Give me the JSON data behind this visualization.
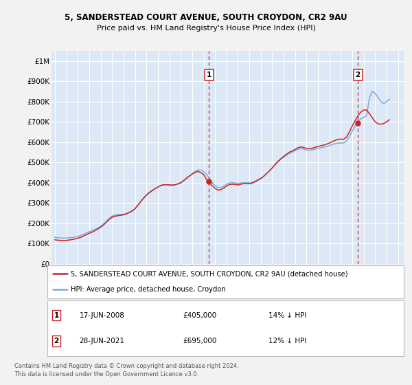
{
  "title_line1": "5, SANDERSTEAD COURT AVENUE, SOUTH CROYDON, CR2 9AU",
  "title_line2": "Price paid vs. HM Land Registry's House Price Index (HPI)",
  "ylabel_ticks": [
    "£0",
    "£100K",
    "£200K",
    "£300K",
    "£400K",
    "£500K",
    "£600K",
    "£700K",
    "£800K",
    "£900K",
    "£1M"
  ],
  "ytick_values": [
    0,
    100000,
    200000,
    300000,
    400000,
    500000,
    600000,
    700000,
    800000,
    900000,
    1000000
  ],
  "xlim_start": 1994.7,
  "xlim_end": 2025.5,
  "ylim_min": 0,
  "ylim_max": 1050000,
  "fig_bg_color": "#f2f2f2",
  "plot_bg_color": "#dce8f5",
  "grid_color": "#ffffff",
  "hpi_line_color": "#7aabdb",
  "price_line_color": "#cc2222",
  "dashed_line_color": "#cc2222",
  "marker1_year": 2008.46,
  "marker1_value": 405000,
  "marker2_year": 2021.49,
  "marker2_value": 695000,
  "legend_line1": "5, SANDERSTEAD COURT AVENUE, SOUTH CROYDON, CR2 9AU (detached house)",
  "legend_line2": "HPI: Average price, detached house, Croydon",
  "annotation1_date": "17-JUN-2008",
  "annotation1_price": "£405,000",
  "annotation1_hpi": "14% ↓ HPI",
  "annotation2_date": "28-JUN-2021",
  "annotation2_price": "£695,000",
  "annotation2_hpi": "12% ↓ HPI",
  "footer": "Contains HM Land Registry data © Crown copyright and database right 2024.\nThis data is licensed under the Open Government Licence v3.0.",
  "hpi_data_x": [
    1995.0,
    1995.25,
    1995.5,
    1995.75,
    1996.0,
    1996.25,
    1996.5,
    1996.75,
    1997.0,
    1997.25,
    1997.5,
    1997.75,
    1998.0,
    1998.25,
    1998.5,
    1998.75,
    1999.0,
    1999.25,
    1999.5,
    1999.75,
    2000.0,
    2000.25,
    2000.5,
    2000.75,
    2001.0,
    2001.25,
    2001.5,
    2001.75,
    2002.0,
    2002.25,
    2002.5,
    2002.75,
    2003.0,
    2003.25,
    2003.5,
    2003.75,
    2004.0,
    2004.25,
    2004.5,
    2004.75,
    2005.0,
    2005.25,
    2005.5,
    2005.75,
    2006.0,
    2006.25,
    2006.5,
    2006.75,
    2007.0,
    2007.25,
    2007.5,
    2007.75,
    2008.0,
    2008.25,
    2008.5,
    2008.75,
    2009.0,
    2009.25,
    2009.5,
    2009.75,
    2010.0,
    2010.25,
    2010.5,
    2010.75,
    2011.0,
    2011.25,
    2011.5,
    2011.75,
    2012.0,
    2012.25,
    2012.5,
    2012.75,
    2013.0,
    2013.25,
    2013.5,
    2013.75,
    2014.0,
    2014.25,
    2014.5,
    2014.75,
    2015.0,
    2015.25,
    2015.5,
    2015.75,
    2016.0,
    2016.25,
    2016.5,
    2016.75,
    2017.0,
    2017.25,
    2017.5,
    2017.75,
    2018.0,
    2018.25,
    2018.5,
    2018.75,
    2019.0,
    2019.25,
    2019.5,
    2019.75,
    2020.0,
    2020.25,
    2020.5,
    2020.75,
    2021.0,
    2021.25,
    2021.5,
    2021.75,
    2022.0,
    2022.25,
    2022.5,
    2022.75,
    2023.0,
    2023.25,
    2023.5,
    2023.75,
    2024.0,
    2024.25
  ],
  "hpi_data_y": [
    130000,
    128000,
    127000,
    126000,
    127000,
    128000,
    129000,
    131000,
    135000,
    139000,
    145000,
    152000,
    158000,
    163000,
    169000,
    177000,
    185000,
    196000,
    210000,
    224000,
    235000,
    240000,
    242000,
    243000,
    244000,
    248000,
    254000,
    262000,
    272000,
    290000,
    308000,
    325000,
    340000,
    352000,
    362000,
    370000,
    378000,
    385000,
    388000,
    388000,
    387000,
    386000,
    388000,
    392000,
    398000,
    408000,
    420000,
    432000,
    444000,
    455000,
    462000,
    462000,
    455000,
    440000,
    420000,
    400000,
    385000,
    375000,
    375000,
    382000,
    392000,
    398000,
    400000,
    398000,
    395000,
    398000,
    400000,
    400000,
    398000,
    402000,
    408000,
    415000,
    422000,
    432000,
    445000,
    458000,
    472000,
    488000,
    502000,
    515000,
    525000,
    535000,
    545000,
    550000,
    558000,
    565000,
    568000,
    565000,
    560000,
    560000,
    562000,
    565000,
    568000,
    572000,
    575000,
    578000,
    582000,
    588000,
    592000,
    595000,
    595000,
    595000,
    605000,
    628000,
    655000,
    678000,
    700000,
    715000,
    722000,
    730000,
    818000,
    850000,
    840000,
    820000,
    800000,
    790000,
    800000,
    810000
  ],
  "price_data_x": [
    1995.0,
    1995.25,
    1995.5,
    1995.75,
    1996.0,
    1996.25,
    1996.5,
    1996.75,
    1997.0,
    1997.25,
    1997.5,
    1997.75,
    1998.0,
    1998.25,
    1998.5,
    1998.75,
    1999.0,
    1999.25,
    1999.5,
    1999.75,
    2000.0,
    2000.25,
    2000.5,
    2000.75,
    2001.0,
    2001.25,
    2001.5,
    2001.75,
    2002.0,
    2002.25,
    2002.5,
    2002.75,
    2003.0,
    2003.25,
    2003.5,
    2003.75,
    2004.0,
    2004.25,
    2004.5,
    2004.75,
    2005.0,
    2005.25,
    2005.5,
    2005.75,
    2006.0,
    2006.25,
    2006.5,
    2006.75,
    2007.0,
    2007.25,
    2007.5,
    2007.75,
    2008.0,
    2008.25,
    2008.5,
    2008.75,
    2009.0,
    2009.25,
    2009.5,
    2009.75,
    2010.0,
    2010.25,
    2010.5,
    2010.75,
    2011.0,
    2011.25,
    2011.5,
    2011.75,
    2012.0,
    2012.25,
    2012.5,
    2012.75,
    2013.0,
    2013.25,
    2013.5,
    2013.75,
    2014.0,
    2014.25,
    2014.5,
    2014.75,
    2015.0,
    2015.25,
    2015.5,
    2015.75,
    2016.0,
    2016.25,
    2016.5,
    2016.75,
    2017.0,
    2017.25,
    2017.5,
    2017.75,
    2018.0,
    2018.25,
    2018.5,
    2018.75,
    2019.0,
    2019.25,
    2019.5,
    2019.75,
    2020.0,
    2020.25,
    2020.5,
    2020.75,
    2021.0,
    2021.25,
    2021.5,
    2021.75,
    2022.0,
    2022.25,
    2022.5,
    2022.75,
    2023.0,
    2023.25,
    2023.5,
    2023.75,
    2024.0,
    2024.25
  ],
  "price_data_y": [
    118000,
    116000,
    115000,
    114000,
    115000,
    117000,
    119000,
    122000,
    126000,
    130000,
    137000,
    144000,
    150000,
    156000,
    163000,
    171000,
    180000,
    191000,
    205000,
    219000,
    229000,
    234000,
    237000,
    239000,
    241000,
    246000,
    252000,
    260000,
    270000,
    288000,
    306000,
    323000,
    338000,
    350000,
    360000,
    370000,
    378000,
    386000,
    390000,
    390000,
    389000,
    388000,
    390000,
    394000,
    400000,
    410000,
    422000,
    432000,
    442000,
    450000,
    455000,
    450000,
    440000,
    415000,
    400000,
    385000,
    372000,
    363000,
    365000,
    373000,
    383000,
    390000,
    392000,
    391000,
    388000,
    392000,
    395000,
    396000,
    394000,
    398000,
    404000,
    412000,
    420000,
    431000,
    444000,
    458000,
    473000,
    490000,
    505000,
    518000,
    530000,
    540000,
    550000,
    556000,
    564000,
    572000,
    576000,
    573000,
    568000,
    568000,
    570000,
    574000,
    578000,
    582000,
    585000,
    590000,
    595000,
    602000,
    608000,
    614000,
    614000,
    614000,
    625000,
    650000,
    680000,
    706000,
    730000,
    748000,
    758000,
    758000,
    740000,
    720000,
    700000,
    690000,
    688000,
    692000,
    700000,
    710000
  ]
}
